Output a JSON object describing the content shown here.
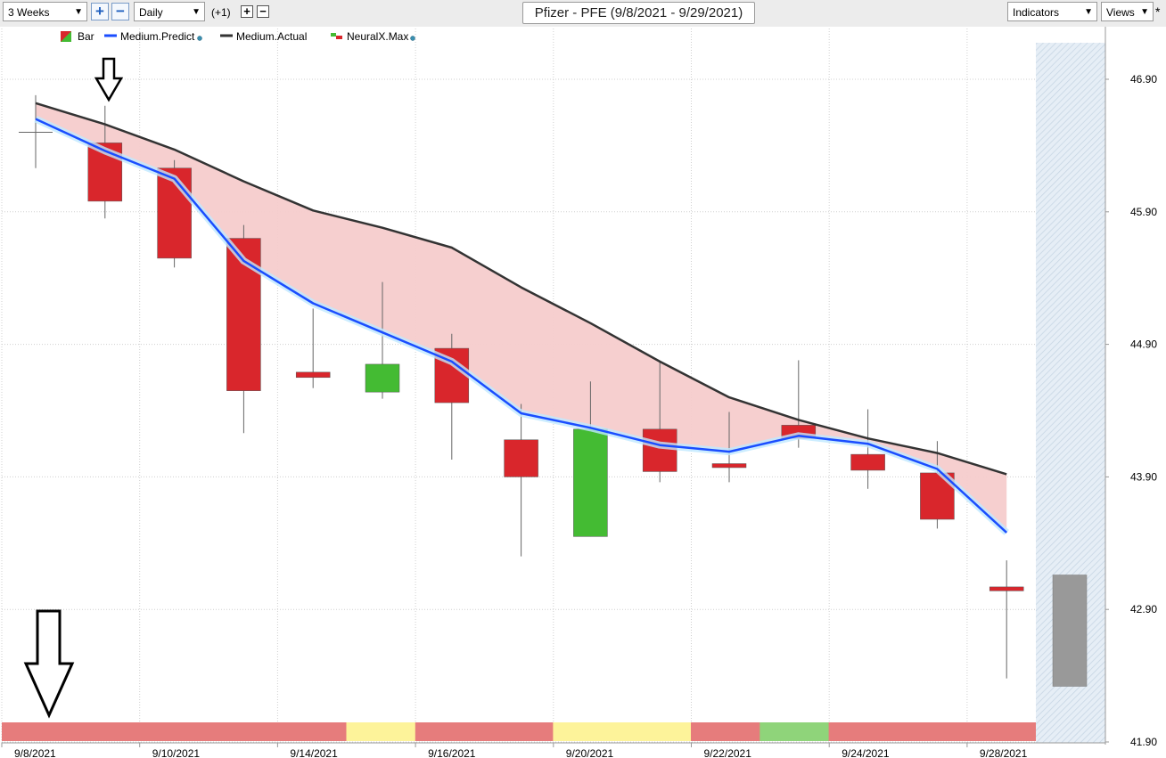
{
  "toolbar": {
    "period": "3 Weeks",
    "plus_label": "+",
    "minus_label": "−",
    "interval": "Daily",
    "offset_label": "(+1)",
    "small_plus": "+",
    "small_minus": "−",
    "title": "Pfizer - PFE (9/8/2021 - 9/29/2021)",
    "indicators_label": "Indicators",
    "views_label": "Views",
    "star_label": "*",
    "dropdown_glyph": "▼"
  },
  "chart_data": {
    "type": "candlestick",
    "legend": [
      {
        "name": "Bar",
        "kind": "candle-icon"
      },
      {
        "name": "Medium.Predict",
        "kind": "line",
        "color": "#1a4dff"
      },
      {
        "name": "Medium.Actual",
        "kind": "line",
        "color": "#333333"
      },
      {
        "name": "NeuralX.Max",
        "kind": "candle-icon"
      }
    ],
    "ylim": [
      41.9,
      47.2
    ],
    "y_ticks": [
      "46.90",
      "45.90",
      "44.90",
      "43.90",
      "42.90",
      "41.90"
    ],
    "x_tick_labels": [
      "9/8/2021",
      "9/10/2021",
      "9/14/2021",
      "9/16/2021",
      "9/20/2021",
      "9/22/2021",
      "9/24/2021",
      "9/28/2021"
    ],
    "candles": [
      {
        "date": "9/8/2021",
        "open": 46.5,
        "high": 46.78,
        "low": 46.23,
        "close": 46.5
      },
      {
        "date": "9/9/2021",
        "open": 46.42,
        "high": 46.7,
        "low": 45.85,
        "close": 45.98
      },
      {
        "date": "9/10/2021",
        "open": 46.23,
        "high": 46.29,
        "low": 45.48,
        "close": 45.55
      },
      {
        "date": "9/13/2021",
        "open": 45.7,
        "high": 45.8,
        "low": 44.23,
        "close": 44.55
      },
      {
        "date": "9/14/2021",
        "open": 44.69,
        "high": 45.17,
        "low": 44.57,
        "close": 44.65
      },
      {
        "date": "9/15/2021",
        "open": 44.54,
        "high": 45.37,
        "low": 44.49,
        "close": 44.75
      },
      {
        "date": "9/16/2021",
        "open": 44.87,
        "high": 44.98,
        "low": 44.03,
        "close": 44.46
      },
      {
        "date": "9/17/2021",
        "open": 44.18,
        "high": 44.45,
        "low": 43.3,
        "close": 43.9
      },
      {
        "date": "9/20/2021",
        "open": 43.45,
        "high": 44.62,
        "low": 43.45,
        "close": 44.26
      },
      {
        "date": "9/21/2021",
        "open": 44.26,
        "high": 44.77,
        "low": 43.86,
        "close": 43.94
      },
      {
        "date": "9/22/2021",
        "open": 44.0,
        "high": 44.39,
        "low": 43.86,
        "close": 43.97
      },
      {
        "date": "9/23/2021",
        "open": 44.29,
        "high": 44.78,
        "low": 44.12,
        "close": 44.19
      },
      {
        "date": "9/24/2021",
        "open": 44.07,
        "high": 44.41,
        "low": 43.81,
        "close": 43.95
      },
      {
        "date": "9/27/2021",
        "open": 43.93,
        "high": 44.17,
        "low": 43.51,
        "close": 43.58
      },
      {
        "date": "9/28/2021",
        "open": 43.07,
        "high": 43.27,
        "low": 42.38,
        "close": 43.04
      }
    ],
    "projection_bar": {
      "date": "9/29/2021",
      "high": 43.16,
      "low": 42.32,
      "color": "#999999"
    },
    "medium_predict": [
      46.6,
      46.36,
      46.15,
      45.53,
      45.21,
      44.99,
      44.77,
      44.38,
      44.27,
      44.14,
      44.09,
      44.21,
      44.15,
      43.96,
      43.48
    ],
    "medium_actual": [
      46.72,
      46.56,
      46.37,
      46.13,
      45.91,
      45.78,
      45.63,
      45.33,
      45.06,
      44.77,
      44.5,
      44.33,
      44.19,
      44.08,
      43.92
    ],
    "signal_strip": [
      "red",
      "red",
      "red",
      "red",
      "red",
      "yellow",
      "red",
      "red",
      "yellow",
      "yellow",
      "red",
      "green",
      "red",
      "red",
      "red"
    ],
    "colors": {
      "down": "#d9262c",
      "up": "#44bb33",
      "predict": "#1a4dff",
      "actual": "#333333",
      "fill": "#f5cccc",
      "strip_red": "#e67c7c",
      "strip_yellow": "#fdf39a",
      "strip_green": "#8fd47a"
    },
    "grid": true
  }
}
